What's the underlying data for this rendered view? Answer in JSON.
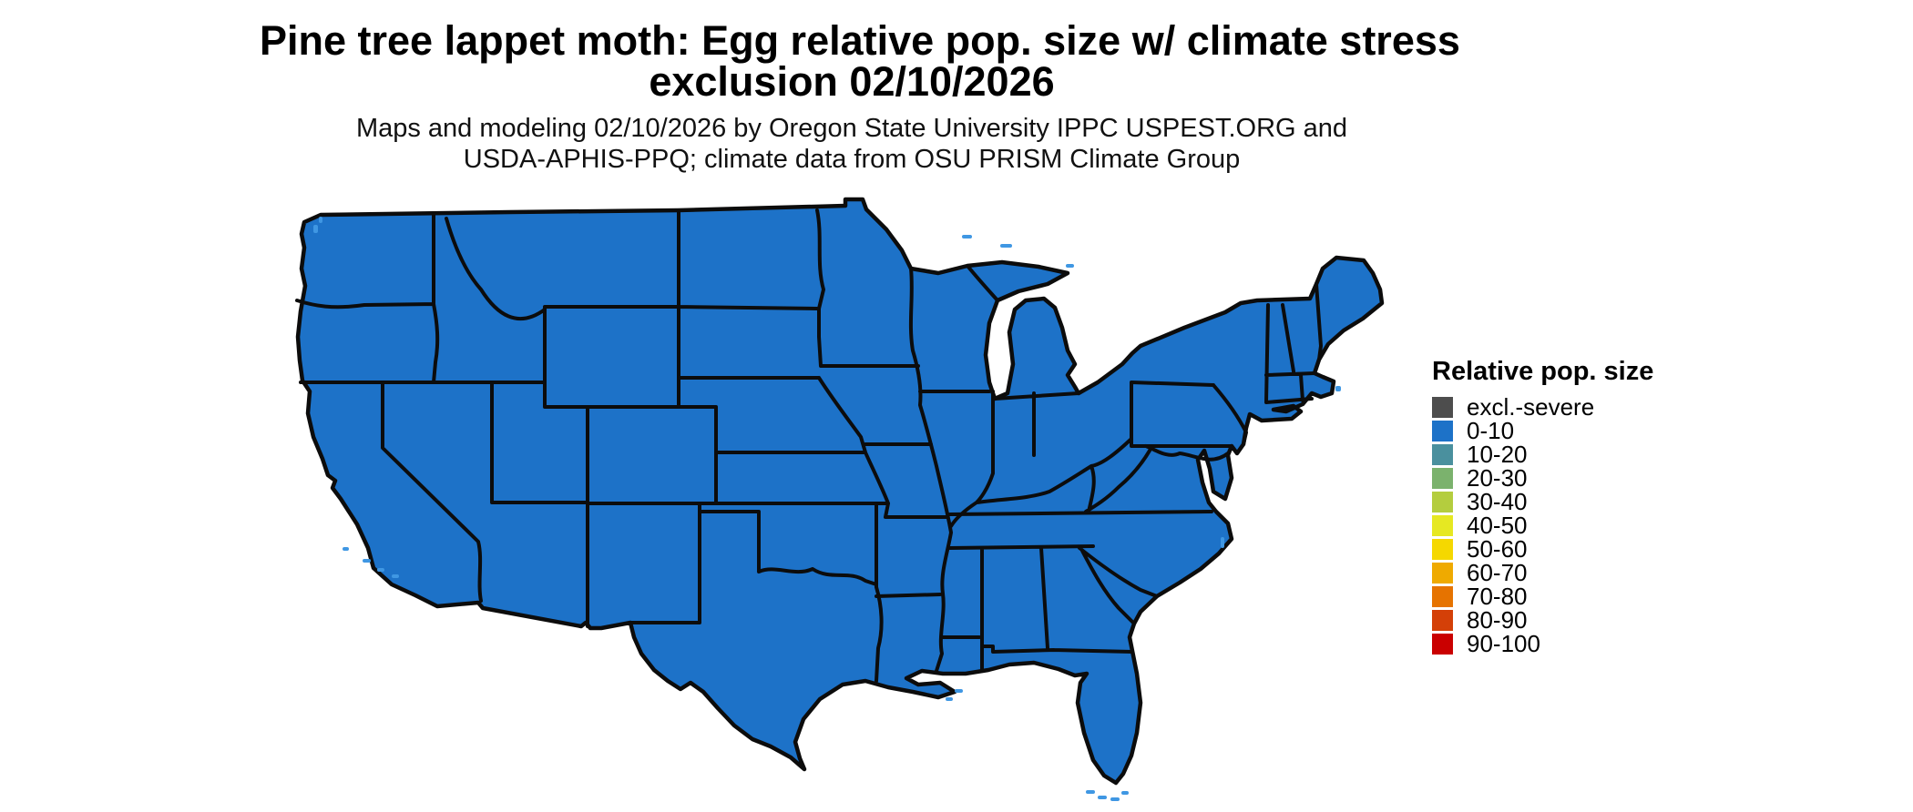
{
  "title": {
    "line1": "Pine tree lappet moth: Egg relative pop. size w/ climate stress",
    "line2": "exclusion 02/10/2026"
  },
  "subtitle": {
    "line1": "Maps and modeling 02/10/2026 by Oregon State University IPPC USPEST.ORG and",
    "line2": "USDA-APHIS-PPQ; climate data from OSU PRISM Climate Group"
  },
  "legend": {
    "title": "Relative pop. size",
    "entries": [
      {
        "label": "excl.-severe",
        "color": "#4d4d4d"
      },
      {
        "label": "0-10",
        "color": "#1d72c8"
      },
      {
        "label": "10-20",
        "color": "#4a909e"
      },
      {
        "label": "20-30",
        "color": "#7bb26d"
      },
      {
        "label": "30-40",
        "color": "#b4cd3e"
      },
      {
        "label": "40-50",
        "color": "#e6e822"
      },
      {
        "label": "50-60",
        "color": "#f5d800"
      },
      {
        "label": "60-70",
        "color": "#efaa00"
      },
      {
        "label": "70-80",
        "color": "#e67300"
      },
      {
        "label": "80-90",
        "color": "#d44008"
      },
      {
        "label": "90-100",
        "color": "#ca0000"
      }
    ]
  },
  "map": {
    "region": "Contiguous United States",
    "type": "choropleth",
    "uniform_fill_category": "0-10",
    "fill_color": "#1d72c8",
    "border_color": "#0c0c0c",
    "water_color": "#3f97e3"
  }
}
